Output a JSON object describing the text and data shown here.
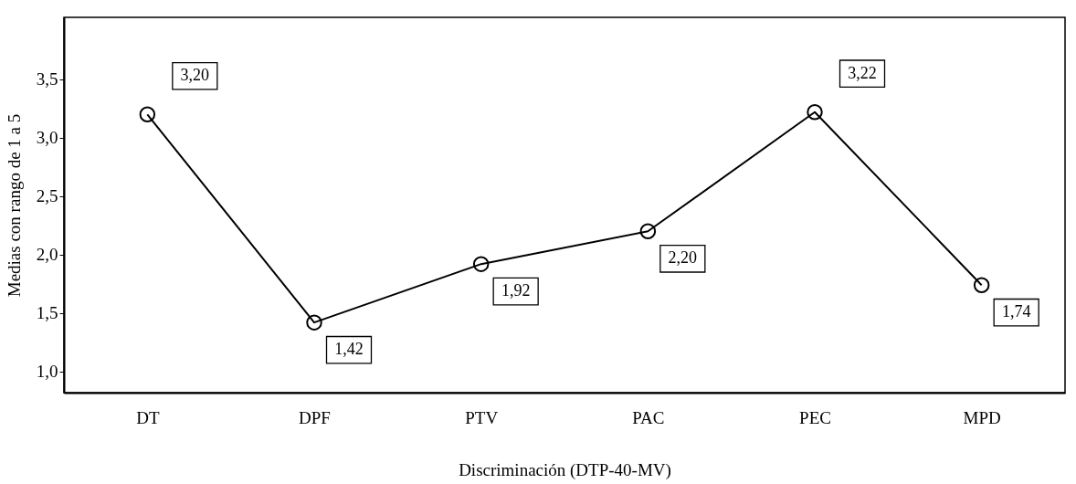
{
  "chart_data": {
    "type": "line",
    "xlabel": "Discriminación (DTP-40-MV)",
    "ylabel": "Medias con rango de 1 a 5",
    "categories": [
      "DT",
      "DPF",
      "PTV",
      "PAC",
      "PEC",
      "MPD"
    ],
    "series": [
      {
        "color": "#000000",
        "values": [
          3.2,
          1.42,
          1.92,
          2.2,
          3.22,
          1.74
        ],
        "value_labels": [
          "3,20",
          "1,42",
          "1,92",
          "2,20",
          "3,22",
          "1,74"
        ]
      }
    ],
    "ylim": [
      0.82,
      4.03
    ],
    "yticks": [
      {
        "value": 1,
        "label": "1,0"
      },
      {
        "value": 1.5,
        "label": "1,5"
      },
      {
        "value": 2,
        "label": "2,0"
      },
      {
        "value": 2.5,
        "label": "2,5"
      },
      {
        "value": 3,
        "label": "3,0"
      },
      {
        "value": 3.5,
        "label": "3,5"
      }
    ],
    "grid": false,
    "marker": "circle",
    "line_style": "solid"
  }
}
